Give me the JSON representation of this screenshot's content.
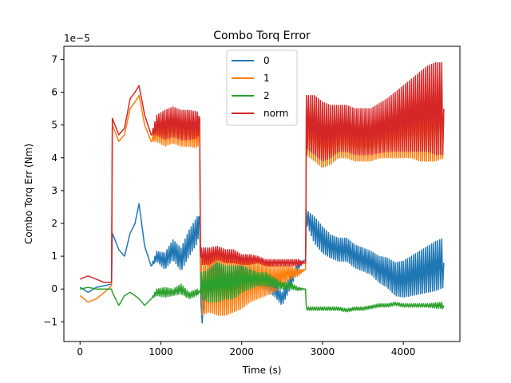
{
  "chart_data": {
    "type": "line",
    "title": "Combo Torq Error",
    "xlabel": "Time (s)",
    "ylabel": "Combo Torq Err (Nm)",
    "y_scale_label": "1e−5",
    "xlim": [
      -200,
      4700
    ],
    "ylim": [
      -1.6,
      7.4
    ],
    "xticks": [
      0,
      1000,
      2000,
      3000,
      4000
    ],
    "xtick_labels": [
      "0",
      "1000",
      "2000",
      "3000",
      "4000"
    ],
    "yticks": [
      -1,
      0,
      1,
      2,
      3,
      4,
      5,
      6,
      7
    ],
    "ytick_labels": [
      "−1",
      "0",
      "1",
      "2",
      "3",
      "4",
      "5",
      "6",
      "7"
    ],
    "grid": false,
    "legend_position": "top-center",
    "series": [
      {
        "name": "0",
        "color": "#1f77b4",
        "x": [
          0,
          100,
          200,
          300,
          390,
          400,
          480,
          550,
          620,
          680,
          730,
          800,
          880,
          950,
          1050,
          1150,
          1250,
          1350,
          1450,
          1480,
          1490,
          1500,
          1600,
          1700,
          1800,
          1900,
          2000,
          2100,
          2200,
          2300,
          2400,
          2500,
          2600,
          2700,
          2790,
          2800,
          2900,
          3000,
          3100,
          3200,
          3300,
          3400,
          3500,
          3600,
          3700,
          3800,
          3900,
          4000,
          4100,
          4200,
          4300,
          4400,
          4500
        ],
        "y": [
          0.05,
          -0.1,
          0.05,
          0.1,
          0.15,
          1.7,
          1.2,
          1.0,
          1.7,
          2.0,
          2.6,
          1.3,
          0.7,
          1.0,
          0.85,
          1.2,
          0.9,
          1.4,
          1.8,
          2.0,
          0.5,
          -0.9,
          0.5,
          0.6,
          0.3,
          0.4,
          0.6,
          0.3,
          0.2,
          0.1,
          0.0,
          -0.3,
          0.2,
          0.7,
          0.9,
          2.2,
          1.8,
          1.5,
          1.3,
          1.2,
          1.2,
          1.0,
          0.9,
          0.8,
          0.6,
          0.5,
          0.3,
          0.3,
          0.4,
          0.5,
          0.6,
          0.7,
          0.8
        ],
        "osc": [
          0,
          0,
          0,
          0,
          0,
          0,
          0,
          0,
          0,
          0,
          0,
          0,
          0,
          0.15,
          0.25,
          0.3,
          0.35,
          0.4,
          0.4,
          0.2,
          0,
          0.3,
          0.4,
          0.5,
          0.4,
          0.3,
          0.3,
          0.2,
          0.2,
          0.2,
          0.2,
          0.2,
          0.2,
          0.1,
          0,
          0.2,
          0.4,
          0.4,
          0.35,
          0.35,
          0.35,
          0.35,
          0.35,
          0.35,
          0.4,
          0.45,
          0.5,
          0.55,
          0.6,
          0.65,
          0.7,
          0.75,
          0.75
        ]
      },
      {
        "name": "1",
        "color": "#ff7f0e",
        "x": [
          0,
          100,
          200,
          300,
          390,
          400,
          480,
          550,
          620,
          680,
          730,
          800,
          880,
          950,
          1050,
          1150,
          1250,
          1350,
          1450,
          1480,
          1490,
          1500,
          1600,
          1700,
          1800,
          1900,
          2000,
          2100,
          2200,
          2300,
          2400,
          2500,
          2600,
          2700,
          2790,
          2800,
          2900,
          3000,
          3100,
          3200,
          3300,
          3400,
          3500,
          3600,
          3700,
          3800,
          3900,
          4000,
          4100,
          4200,
          4300,
          4400,
          4500
        ],
        "y": [
          -0.2,
          -0.4,
          -0.3,
          -0.1,
          0.1,
          5.0,
          4.5,
          4.7,
          5.5,
          5.7,
          5.9,
          5.0,
          4.5,
          4.8,
          4.8,
          4.9,
          4.8,
          4.8,
          4.7,
          4.7,
          1.0,
          0.0,
          0.2,
          0.2,
          0.1,
          0.2,
          0.2,
          0.3,
          0.3,
          0.3,
          0.3,
          0.4,
          0.5,
          0.5,
          0.6,
          4.8,
          4.7,
          4.5,
          4.5,
          4.6,
          4.6,
          4.5,
          4.5,
          4.5,
          4.6,
          4.7,
          4.8,
          4.9,
          5.0,
          5.0,
          5.1,
          5.2,
          5.3
        ],
        "osc": [
          0,
          0,
          0,
          0,
          0,
          0,
          0,
          0,
          0,
          0,
          0,
          0,
          0,
          0.3,
          0.45,
          0.45,
          0.45,
          0.45,
          0.4,
          0.2,
          0,
          0.8,
          0.9,
          1.0,
          0.9,
          0.9,
          0.8,
          0.7,
          0.6,
          0.5,
          0.4,
          0.3,
          0.2,
          0.1,
          0,
          0.7,
          0.8,
          0.8,
          0.7,
          0.6,
          0.6,
          0.6,
          0.6,
          0.6,
          0.6,
          0.7,
          0.8,
          0.9,
          1.0,
          1.1,
          1.2,
          1.3,
          1.3
        ]
      },
      {
        "name": "2",
        "color": "#2ca02c",
        "x": [
          0,
          100,
          200,
          300,
          390,
          400,
          480,
          550,
          620,
          680,
          730,
          800,
          880,
          950,
          1050,
          1150,
          1250,
          1350,
          1450,
          1480,
          1490,
          1500,
          1600,
          1700,
          1800,
          1900,
          2000,
          2100,
          2200,
          2300,
          2400,
          2500,
          2600,
          2700,
          2790,
          2800,
          2900,
          3000,
          3100,
          3200,
          3300,
          3400,
          3500,
          3600,
          3700,
          3800,
          3900,
          4000,
          4100,
          4200,
          4300,
          4400,
          4500
        ],
        "y": [
          0.0,
          0.05,
          0.0,
          0.0,
          0.0,
          -0.1,
          -0.5,
          -0.2,
          -0.1,
          -0.2,
          -0.3,
          -0.5,
          -0.3,
          -0.1,
          -0.1,
          -0.1,
          0.0,
          -0.2,
          -0.1,
          -0.1,
          0.0,
          0.1,
          0.1,
          0.2,
          0.2,
          0.2,
          0.3,
          0.3,
          0.3,
          0.3,
          0.2,
          0.1,
          0.1,
          0.0,
          0.0,
          -0.6,
          -0.6,
          -0.6,
          -0.6,
          -0.6,
          -0.65,
          -0.6,
          -0.6,
          -0.55,
          -0.5,
          -0.5,
          -0.45,
          -0.5,
          -0.5,
          -0.5,
          -0.5,
          -0.5,
          -0.5
        ],
        "osc": [
          0,
          0,
          0,
          0,
          0,
          0,
          0,
          0,
          0,
          0,
          0,
          0,
          0,
          0.1,
          0.15,
          0.1,
          0.15,
          0.1,
          0.1,
          0,
          0,
          0.4,
          0.5,
          0.6,
          0.5,
          0.5,
          0.4,
          0.3,
          0.2,
          0.2,
          0.15,
          0.1,
          0.1,
          0.05,
          0,
          0.05,
          0.05,
          0.05,
          0.05,
          0.05,
          0.05,
          0.05,
          0.05,
          0.05,
          0.05,
          0.05,
          0.05,
          0.05,
          0.05,
          0.05,
          0.05,
          0.08,
          0.1
        ]
      },
      {
        "name": "norm",
        "color": "#d62728",
        "x": [
          0,
          100,
          200,
          300,
          390,
          400,
          480,
          550,
          620,
          680,
          730,
          800,
          880,
          950,
          1050,
          1150,
          1250,
          1350,
          1450,
          1480,
          1490,
          1500,
          1600,
          1700,
          1800,
          1900,
          2000,
          2100,
          2200,
          2300,
          2400,
          2500,
          2600,
          2700,
          2790,
          2800,
          2900,
          3000,
          3100,
          3200,
          3300,
          3400,
          3500,
          3600,
          3700,
          3800,
          3900,
          4000,
          4100,
          4200,
          4300,
          4400,
          4500
        ],
        "y": [
          0.3,
          0.4,
          0.3,
          0.2,
          0.2,
          5.2,
          4.7,
          4.9,
          5.8,
          6.0,
          6.2,
          5.3,
          4.7,
          5.0,
          5.0,
          5.1,
          5.0,
          5.0,
          5.0,
          5.0,
          1.2,
          1.0,
          1.0,
          1.1,
          1.0,
          1.0,
          0.9,
          0.9,
          0.9,
          0.8,
          0.8,
          0.8,
          0.8,
          0.8,
          0.8,
          5.1,
          5.0,
          4.8,
          4.8,
          4.9,
          4.9,
          4.8,
          4.8,
          4.8,
          4.9,
          5.0,
          5.1,
          5.2,
          5.3,
          5.4,
          5.5,
          5.5,
          5.5
        ],
        "osc": [
          0,
          0,
          0,
          0,
          0,
          0,
          0,
          0,
          0,
          0,
          0,
          0,
          0,
          0.3,
          0.45,
          0.45,
          0.45,
          0.45,
          0.4,
          0.2,
          0,
          0.25,
          0.25,
          0.2,
          0.2,
          0.2,
          0.15,
          0.15,
          0.1,
          0.1,
          0.1,
          0.1,
          0.1,
          0.1,
          0,
          0.8,
          0.9,
          0.9,
          0.8,
          0.7,
          0.7,
          0.7,
          0.7,
          0.7,
          0.75,
          0.8,
          0.9,
          1.0,
          1.1,
          1.2,
          1.3,
          1.4,
          1.4
        ]
      }
    ]
  }
}
